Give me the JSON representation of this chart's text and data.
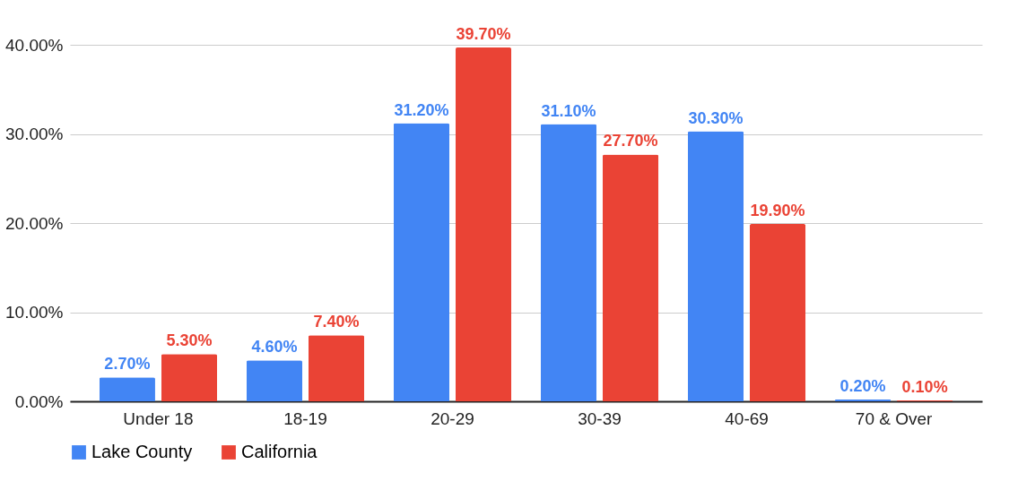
{
  "chart_data": {
    "type": "bar",
    "categories": [
      "Under 18",
      "18-19",
      "20-29",
      "30-39",
      "40-69",
      "70 & Over"
    ],
    "series": [
      {
        "name": "Lake County",
        "color": "#4285f4",
        "values": [
          2.7,
          4.6,
          31.2,
          31.1,
          30.3,
          0.2
        ],
        "value_labels": [
          "2.70%",
          "4.60%",
          "31.20%",
          "31.10%",
          "30.30%",
          "0.20%"
        ]
      },
      {
        "name": "California",
        "color": "#ea4335",
        "values": [
          5.3,
          7.4,
          39.7,
          27.7,
          19.9,
          0.1
        ],
        "value_labels": [
          "5.30%",
          "7.40%",
          "39.70%",
          "27.70%",
          "19.90%",
          "0.10%"
        ]
      }
    ],
    "ylim": [
      0,
      40
    ],
    "yticks": [
      {
        "value": 0,
        "label": "0.00%"
      },
      {
        "value": 10,
        "label": "10.00%"
      },
      {
        "value": 20,
        "label": "20.00%"
      },
      {
        "value": 30,
        "label": "30.00%"
      },
      {
        "value": 40,
        "label": "40.00%"
      }
    ],
    "grid": "y",
    "legend": "bottom"
  }
}
